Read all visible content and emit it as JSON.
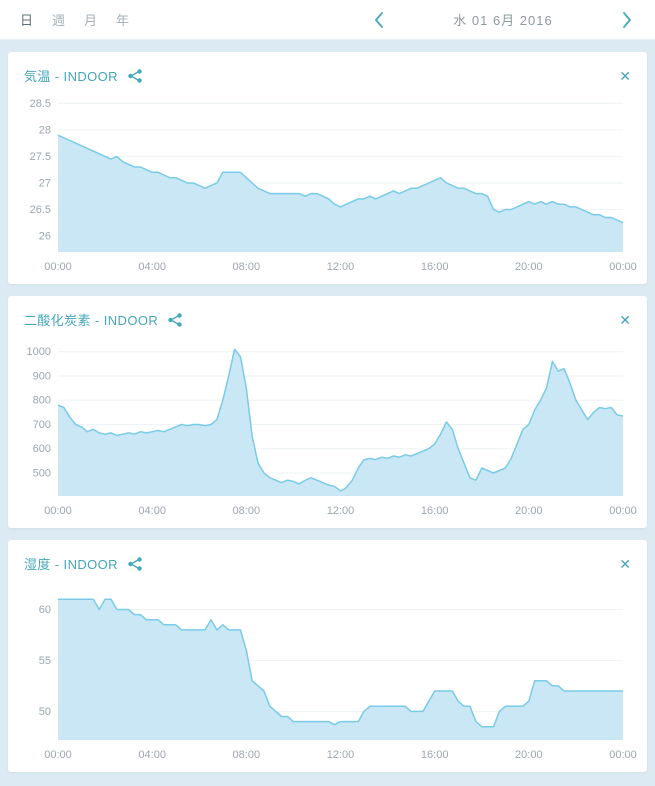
{
  "accent_color": "#45a6bc",
  "icons": {
    "close": "✕",
    "names": [
      "chevron-left-icon",
      "chevron-right-icon",
      "share-icon",
      "close-icon"
    ]
  },
  "topbar": {
    "tabs": [
      {
        "label": "日",
        "active": true
      },
      {
        "label": "週",
        "active": false
      },
      {
        "label": "月",
        "active": false
      },
      {
        "label": "年",
        "active": false
      }
    ],
    "date_label": "水 01 6月 2016"
  },
  "chart_data": [
    {
      "type": "area",
      "title": "気温 -  INDOOR",
      "xlabel": "",
      "ylabel": "",
      "x_range": [
        0,
        24
      ],
      "x_ticks": [
        "00:00",
        "04:00",
        "08:00",
        "12:00",
        "16:00",
        "20:00",
        "00:00"
      ],
      "y_ticks": [
        26,
        26.5,
        27,
        27.5,
        28,
        28.5
      ],
      "y_tick_labels": [
        "26",
        "26.5",
        "27",
        "27.5",
        "28",
        "28.5"
      ],
      "ylim": [
        25.7,
        28.6
      ],
      "fill_color": "#c9e7f5",
      "line_color": "#79cbe7",
      "interval_minutes": 15,
      "values": [
        27.9,
        27.85,
        27.8,
        27.75,
        27.7,
        27.65,
        27.6,
        27.55,
        27.5,
        27.45,
        27.5,
        27.4,
        27.35,
        27.3,
        27.3,
        27.25,
        27.2,
        27.2,
        27.15,
        27.1,
        27.1,
        27.05,
        27.0,
        27.0,
        26.95,
        26.9,
        26.95,
        27.0,
        27.2,
        27.2,
        27.2,
        27.2,
        27.1,
        27.0,
        26.9,
        26.85,
        26.8,
        26.8,
        26.8,
        26.8,
        26.8,
        26.8,
        26.75,
        26.8,
        26.8,
        26.75,
        26.7,
        26.6,
        26.55,
        26.6,
        26.65,
        26.7,
        26.7,
        26.75,
        26.7,
        26.75,
        26.8,
        26.85,
        26.8,
        26.85,
        26.9,
        26.9,
        26.95,
        27.0,
        27.05,
        27.1,
        27.0,
        26.95,
        26.9,
        26.9,
        26.85,
        26.8,
        26.8,
        26.75,
        26.5,
        26.45,
        26.5,
        26.5,
        26.55,
        26.6,
        26.65,
        26.6,
        26.65,
        26.6,
        26.65,
        26.6,
        26.6,
        26.55,
        26.55,
        26.5,
        26.45,
        26.4,
        26.4,
        26.35,
        26.35,
        26.3,
        26.25
      ]
    },
    {
      "type": "area",
      "title": "二酸化炭素 -  INDOOR",
      "xlabel": "",
      "ylabel": "",
      "x_range": [
        0,
        24
      ],
      "x_ticks": [
        "00:00",
        "04:00",
        "08:00",
        "12:00",
        "16:00",
        "20:00",
        "00:00"
      ],
      "y_ticks": [
        500,
        600,
        700,
        800,
        900,
        1000
      ],
      "y_tick_labels": [
        "500",
        "600",
        "700",
        "800",
        "900",
        "1000"
      ],
      "ylim": [
        405,
        1040
      ],
      "fill_color": "#c9e7f5",
      "line_color": "#79cbe7",
      "interval_minutes": 15,
      "values": [
        780,
        770,
        730,
        700,
        690,
        670,
        680,
        665,
        660,
        665,
        655,
        660,
        665,
        660,
        670,
        665,
        670,
        675,
        670,
        680,
        690,
        700,
        695,
        700,
        700,
        695,
        700,
        720,
        800,
        900,
        1010,
        980,
        850,
        650,
        540,
        500,
        480,
        470,
        460,
        470,
        465,
        455,
        470,
        480,
        470,
        460,
        450,
        445,
        425,
        440,
        470,
        520,
        555,
        560,
        555,
        565,
        560,
        570,
        565,
        575,
        570,
        580,
        590,
        600,
        620,
        660,
        710,
        680,
        600,
        540,
        480,
        470,
        520,
        510,
        500,
        510,
        520,
        560,
        620,
        680,
        700,
        760,
        800,
        850,
        960,
        920,
        930,
        870,
        800,
        760,
        720,
        750,
        770,
        765,
        770,
        740,
        735
      ]
    },
    {
      "type": "area",
      "title": "湿度 -  INDOOR",
      "xlabel": "",
      "ylabel": "",
      "x_range": [
        0,
        24
      ],
      "x_ticks": [
        "00:00",
        "04:00",
        "08:00",
        "12:00",
        "16:00",
        "20:00",
        "00:00"
      ],
      "y_ticks": [
        50,
        55,
        60
      ],
      "y_tick_labels": [
        "50",
        "55",
        "60"
      ],
      "ylim": [
        47.2,
        62.3
      ],
      "fill_color": "#c9e7f5",
      "line_color": "#79cbe7",
      "interval_minutes": 15,
      "values": [
        61,
        61,
        61,
        61,
        61,
        61,
        61,
        60,
        61,
        61,
        60,
        60,
        60,
        59.5,
        59.5,
        59,
        59,
        59,
        58.5,
        58.5,
        58.5,
        58,
        58,
        58,
        58,
        58,
        59,
        58,
        58.5,
        58,
        58,
        58,
        56,
        53,
        52.5,
        52,
        50.5,
        50,
        49.5,
        49.5,
        49,
        49,
        49,
        49,
        49,
        49,
        49,
        48.7,
        49,
        49,
        49,
        49,
        50,
        50.5,
        50.5,
        50.5,
        50.5,
        50.5,
        50.5,
        50.5,
        50,
        50,
        50,
        51,
        52,
        52,
        52,
        52,
        51,
        50.5,
        50.5,
        49,
        48.5,
        48.5,
        48.5,
        50,
        50.5,
        50.5,
        50.5,
        50.5,
        51,
        53,
        53,
        53,
        52.5,
        52.5,
        52,
        52,
        52,
        52,
        52,
        52,
        52,
        52,
        52,
        52,
        52
      ]
    }
  ]
}
